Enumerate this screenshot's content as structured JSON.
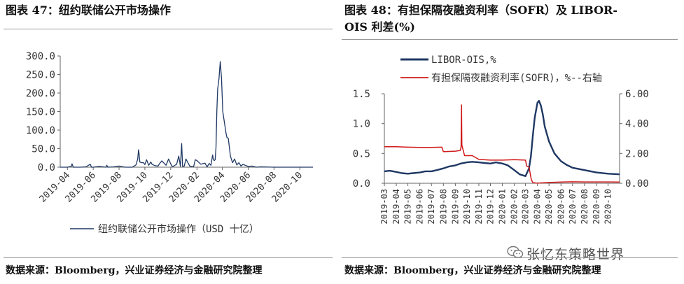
{
  "left_panel": {
    "title": "图表 47：纽约联储公开市场操作",
    "source": "数据来源：Bloomberg，兴业证券经济与金融研究院整理"
  },
  "right_panel": {
    "title_line1": "图表 48：有担保隔夜融资利率（SOFR）及 LIBOR-",
    "title_line2": "OIS 利差(%)",
    "source": "数据来源：Bloomberg，兴业证券经济与金融研究院整理"
  },
  "watermark": {
    "text": "张忆东策略世界",
    "icon": "wechat-icon"
  },
  "chart_data": [
    {
      "type": "line",
      "title": "",
      "xlabel": "",
      "ylabel": "",
      "ylim": [
        0,
        300
      ],
      "y_ticks": [
        "300.0",
        "250.0",
        "200.0",
        "150.0",
        "100.0",
        "50.0",
        "0.0"
      ],
      "y_tick_values": [
        300,
        250,
        200,
        150,
        100,
        50,
        0
      ],
      "x_ticks": [
        "2019-04",
        "2019-06",
        "2019-08",
        "2019-10",
        "2019-12",
        "2020-02",
        "2020-04",
        "2020-06",
        "2020-08",
        "2020-10"
      ],
      "x_range": [
        "2019-03-15",
        "2020-11-01"
      ],
      "grid": false,
      "legend_position": "bottom",
      "color": "#1f3864",
      "series": [
        {
          "name": "纽约联储公开市场操作（USD 十亿）",
          "x": [
            "2019-03-15",
            "2019-04-01",
            "2019-04-10",
            "2019-04-12",
            "2019-04-15",
            "2019-05-01",
            "2019-05-15",
            "2019-05-25",
            "2019-05-28",
            "2019-06-01",
            "2019-06-15",
            "2019-07-01",
            "2019-07-03",
            "2019-07-06",
            "2019-07-20",
            "2019-08-01",
            "2019-08-15",
            "2019-09-01",
            "2019-09-10",
            "2019-09-14",
            "2019-09-16",
            "2019-09-17",
            "2019-09-19",
            "2019-09-23",
            "2019-09-28",
            "2019-10-01",
            "2019-10-05",
            "2019-10-10",
            "2019-10-15",
            "2019-10-18",
            "2019-10-25",
            "2019-11-01",
            "2019-11-05",
            "2019-11-10",
            "2019-11-20",
            "2019-11-26",
            "2019-12-01",
            "2019-12-05",
            "2019-12-15",
            "2019-12-20",
            "2019-12-24",
            "2019-12-27",
            "2019-12-29",
            "2020-01-02",
            "2020-01-06",
            "2020-01-15",
            "2020-01-24",
            "2020-01-28",
            "2020-02-01",
            "2020-02-10",
            "2020-02-20",
            "2020-02-25",
            "2020-03-01",
            "2020-03-05",
            "2020-03-09",
            "2020-03-11",
            "2020-03-13",
            "2020-03-15",
            "2020-03-17",
            "2020-03-19",
            "2020-03-21",
            "2020-03-24",
            "2020-03-27",
            "2020-03-30",
            "2020-04-02",
            "2020-04-06",
            "2020-04-10",
            "2020-04-12",
            "2020-04-15",
            "2020-04-20",
            "2020-04-25",
            "2020-04-30",
            "2020-05-05",
            "2020-05-10",
            "2020-05-15",
            "2020-05-20",
            "2020-05-25",
            "2020-06-01",
            "2020-06-10",
            "2020-06-20",
            "2020-07-01",
            "2020-08-01",
            "2020-09-01",
            "2020-10-01",
            "2020-11-01"
          ],
          "values": [
            0,
            0,
            2,
            9,
            0,
            0,
            1,
            8,
            0,
            0,
            2,
            0,
            5,
            0,
            1,
            3,
            0,
            0,
            6,
            22,
            47,
            39,
            14,
            12,
            12,
            7,
            20,
            5,
            14,
            8,
            4,
            3,
            10,
            17,
            5,
            22,
            9,
            1,
            8,
            30,
            2,
            64,
            2,
            3,
            22,
            3,
            1,
            20,
            18,
            8,
            11,
            1,
            10,
            5,
            33,
            20,
            18,
            20,
            52,
            150,
            210,
            239,
            285,
            240,
            150,
            120,
            90,
            80,
            78,
            30,
            12,
            22,
            6,
            12,
            3,
            8,
            5,
            2,
            3,
            0,
            1,
            0,
            0,
            0,
            0
          ]
        }
      ]
    },
    {
      "type": "line",
      "title": "",
      "xlabel": "",
      "ylabel": "",
      "ylim": [
        0,
        1.5
      ],
      "y_ticks": [
        "1.5",
        "1.0",
        "0.5",
        "0.0"
      ],
      "y_tick_values": [
        1.5,
        1.0,
        0.5,
        0.0
      ],
      "y2lim": [
        0,
        6
      ],
      "y2_ticks": [
        "6.00",
        "4.00",
        "2.00",
        "0.00"
      ],
      "y2_tick_values": [
        6,
        4,
        2,
        0
      ],
      "x_ticks": [
        "2019-03",
        "2019-04",
        "2019-05",
        "2019-06",
        "2019-07",
        "2019-08",
        "2019-09",
        "2019-10",
        "2019-11",
        "2019-12",
        "2020-01",
        "2020-02",
        "2020-03",
        "2020-04",
        "2020-05",
        "2020-06",
        "2020-07",
        "2020-08",
        "2020-09",
        "2020-10"
      ],
      "x_range": [
        "2019-03-01",
        "2020-10-31"
      ],
      "grid": false,
      "legend_position": "top-left",
      "series": [
        {
          "name": "LIBOR-OIS,%",
          "axis": "left",
          "color": "#1f3864",
          "x": [
            "2019-03-01",
            "2019-03-15",
            "2019-04-01",
            "2019-04-15",
            "2019-05-01",
            "2019-05-15",
            "2019-06-01",
            "2019-06-15",
            "2019-07-01",
            "2019-07-15",
            "2019-08-01",
            "2019-08-15",
            "2019-09-01",
            "2019-09-15",
            "2019-10-01",
            "2019-10-15",
            "2019-11-01",
            "2019-11-15",
            "2019-12-01",
            "2019-12-15",
            "2020-01-01",
            "2020-01-15",
            "2020-02-01",
            "2020-02-15",
            "2020-03-01",
            "2020-03-10",
            "2020-03-15",
            "2020-03-20",
            "2020-03-25",
            "2020-04-01",
            "2020-04-05",
            "2020-04-10",
            "2020-04-15",
            "2020-04-20",
            "2020-05-01",
            "2020-05-15",
            "2020-06-01",
            "2020-06-15",
            "2020-07-01",
            "2020-08-01",
            "2020-09-01",
            "2020-10-01",
            "2020-10-31"
          ],
          "values": [
            0.2,
            0.21,
            0.19,
            0.17,
            0.16,
            0.17,
            0.18,
            0.2,
            0.2,
            0.22,
            0.25,
            0.28,
            0.3,
            0.33,
            0.35,
            0.36,
            0.35,
            0.34,
            0.33,
            0.35,
            0.33,
            0.3,
            0.22,
            0.15,
            0.12,
            0.25,
            0.45,
            0.8,
            1.1,
            1.35,
            1.38,
            1.3,
            1.15,
            0.95,
            0.7,
            0.5,
            0.37,
            0.31,
            0.26,
            0.22,
            0.18,
            0.16,
            0.15
          ]
        },
        {
          "name": "有担保隔夜融资利率(SOFR)，%--右轴",
          "axis": "right",
          "color": "#d11a1a",
          "x": [
            "2019-03-01",
            "2019-04-01",
            "2019-05-01",
            "2019-06-01",
            "2019-07-01",
            "2019-07-28",
            "2019-08-01",
            "2019-09-01",
            "2019-09-14",
            "2019-09-16",
            "2019-09-17",
            "2019-09-18",
            "2019-09-25",
            "2019-10-01",
            "2019-10-15",
            "2019-11-01",
            "2019-12-01",
            "2019-12-31",
            "2020-01-02",
            "2020-02-01",
            "2020-03-01",
            "2020-03-04",
            "2020-03-10",
            "2020-03-16",
            "2020-03-20",
            "2020-04-01",
            "2020-05-01",
            "2020-06-01",
            "2020-07-01",
            "2020-08-01",
            "2020-09-01",
            "2020-10-01",
            "2020-10-31"
          ],
          "values": [
            2.45,
            2.45,
            2.42,
            2.4,
            2.4,
            2.42,
            2.12,
            2.15,
            2.2,
            2.43,
            5.25,
            2.55,
            1.85,
            1.85,
            1.85,
            1.6,
            1.55,
            1.55,
            1.55,
            1.58,
            1.55,
            1.15,
            1.1,
            0.25,
            0.04,
            0.01,
            0.05,
            0.08,
            0.1,
            0.09,
            0.09,
            0.09,
            0.08
          ]
        }
      ]
    }
  ]
}
